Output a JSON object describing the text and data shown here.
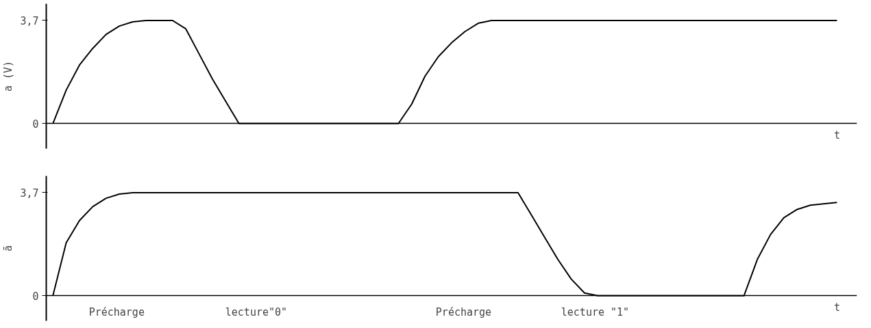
{
  "chart_data": [
    {
      "type": "line",
      "ylabel": "a (V)",
      "xlabel": "t",
      "categories": [
        null,
        null,
        null,
        null,
        null,
        null,
        null,
        null,
        null,
        null,
        null,
        null,
        null,
        null,
        null,
        null,
        null,
        null,
        null,
        null,
        null,
        null,
        null,
        null,
        null,
        null,
        null,
        null,
        null,
        null,
        null,
        null,
        null,
        null,
        null,
        null,
        null,
        null,
        null,
        null,
        null,
        null,
        null,
        null,
        null,
        null,
        null,
        null,
        null,
        null,
        null,
        null,
        null,
        null,
        null,
        null,
        null,
        null,
        null,
        null
      ],
      "ylim": [
        -0.9,
        4.3
      ],
      "yticks": [
        0,
        {
          "value": 3.7,
          "label": "3,7"
        }
      ],
      "tick_labels": "y",
      "line_style": "solid",
      "marker": "none",
      "series": [
        {
          "color": "#000000",
          "values": [
            0,
            1.2,
            2.1,
            2.7,
            3.2,
            3.5,
            3.65,
            3.7,
            3.7,
            3.7,
            3.4,
            2.5,
            1.6,
            0.8,
            0,
            0,
            0,
            0,
            0,
            0,
            0,
            0,
            0,
            0,
            0,
            0,
            0,
            0.7,
            1.7,
            2.4,
            2.9,
            3.3,
            3.6,
            3.7,
            3.7,
            3.7,
            3.7,
            3.7,
            3.7,
            3.7,
            3.7,
            3.7,
            3.7,
            3.7,
            3.7,
            3.7,
            3.7,
            3.7,
            3.7,
            3.7,
            3.7,
            3.7,
            3.7,
            3.7,
            3.7,
            3.7,
            3.7,
            3.7,
            3.7,
            3.7
          ]
        }
      ]
    },
    {
      "type": "line",
      "ylabel": "ā",
      "xlabel": "t",
      "categories": [
        null,
        null,
        null,
        null,
        null,
        null,
        null,
        null,
        null,
        null,
        null,
        null,
        null,
        null,
        null,
        null,
        null,
        null,
        null,
        null,
        null,
        null,
        null,
        null,
        null,
        null,
        null,
        null,
        null,
        null,
        null,
        null,
        null,
        null,
        null,
        null,
        null,
        null,
        null,
        null,
        null,
        null,
        null,
        null,
        null,
        null,
        null,
        null,
        null,
        null,
        null,
        null,
        null,
        null,
        null,
        null,
        null,
        null,
        null,
        null
      ],
      "ylim": [
        -0.9,
        4.3
      ],
      "yticks": [
        0,
        {
          "value": 3.7,
          "label": "3,7"
        }
      ],
      "tick_labels": "y",
      "line_style": "solid",
      "marker": "none",
      "series": [
        {
          "color": "#000000",
          "values": [
            0,
            1.9,
            2.7,
            3.2,
            3.5,
            3.65,
            3.7,
            3.7,
            3.7,
            3.7,
            3.7,
            3.7,
            3.7,
            3.7,
            3.7,
            3.7,
            3.7,
            3.7,
            3.7,
            3.7,
            3.7,
            3.7,
            3.7,
            3.7,
            3.7,
            3.7,
            3.7,
            3.7,
            3.7,
            3.7,
            3.7,
            3.7,
            3.7,
            3.7,
            3.7,
            3.7,
            2.9,
            2.1,
            1.3,
            0.6,
            0.1,
            0,
            0,
            0,
            0,
            0,
            0,
            0,
            0,
            0,
            0,
            0,
            0,
            1.3,
            2.2,
            2.8,
            3.1,
            3.25,
            3.3,
            3.35
          ]
        }
      ],
      "annotations": [
        "Précharge",
        "lecture\"0\"",
        "Précharge",
        "lecture \"1\""
      ]
    }
  ]
}
